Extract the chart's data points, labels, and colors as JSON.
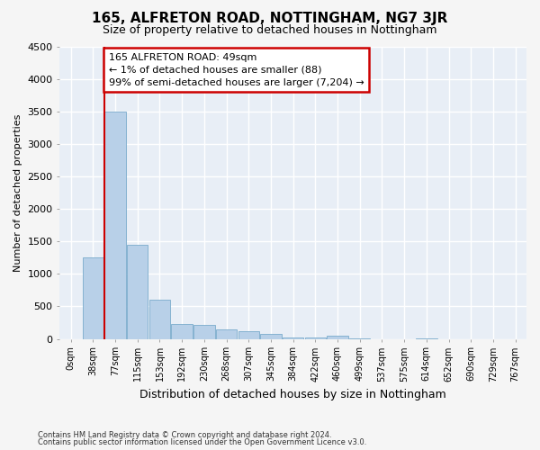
{
  "title": "165, ALFRETON ROAD, NOTTINGHAM, NG7 3JR",
  "subtitle": "Size of property relative to detached houses in Nottingham",
  "xlabel": "Distribution of detached houses by size in Nottingham",
  "ylabel": "Number of detached properties",
  "bar_color": "#b8d0e8",
  "bar_edge_color": "#7aabcc",
  "background_color": "#e8eef6",
  "grid_color": "#ffffff",
  "fig_color": "#f5f5f5",
  "categories": [
    "0sqm",
    "38sqm",
    "77sqm",
    "115sqm",
    "153sqm",
    "192sqm",
    "230sqm",
    "268sqm",
    "307sqm",
    "345sqm",
    "384sqm",
    "422sqm",
    "460sqm",
    "499sqm",
    "537sqm",
    "575sqm",
    "614sqm",
    "652sqm",
    "690sqm",
    "729sqm",
    "767sqm"
  ],
  "bar_heights": [
    0,
    1250,
    3500,
    1450,
    600,
    230,
    220,
    145,
    120,
    75,
    28,
    18,
    50,
    5,
    0,
    0,
    5,
    0,
    0,
    0,
    0
  ],
  "ylim": [
    0,
    4500
  ],
  "yticks": [
    0,
    500,
    1000,
    1500,
    2000,
    2500,
    3000,
    3500,
    4000,
    4500
  ],
  "property_line_x": 1.5,
  "annotation_text": "165 ALFRETON ROAD: 49sqm\n← 1% of detached houses are smaller (88)\n99% of semi-detached houses are larger (7,204) →",
  "annotation_box_color": "#ffffff",
  "annotation_box_edge": "#cc0000",
  "footer_line1": "Contains HM Land Registry data © Crown copyright and database right 2024.",
  "footer_line2": "Contains public sector information licensed under the Open Government Licence v3.0."
}
